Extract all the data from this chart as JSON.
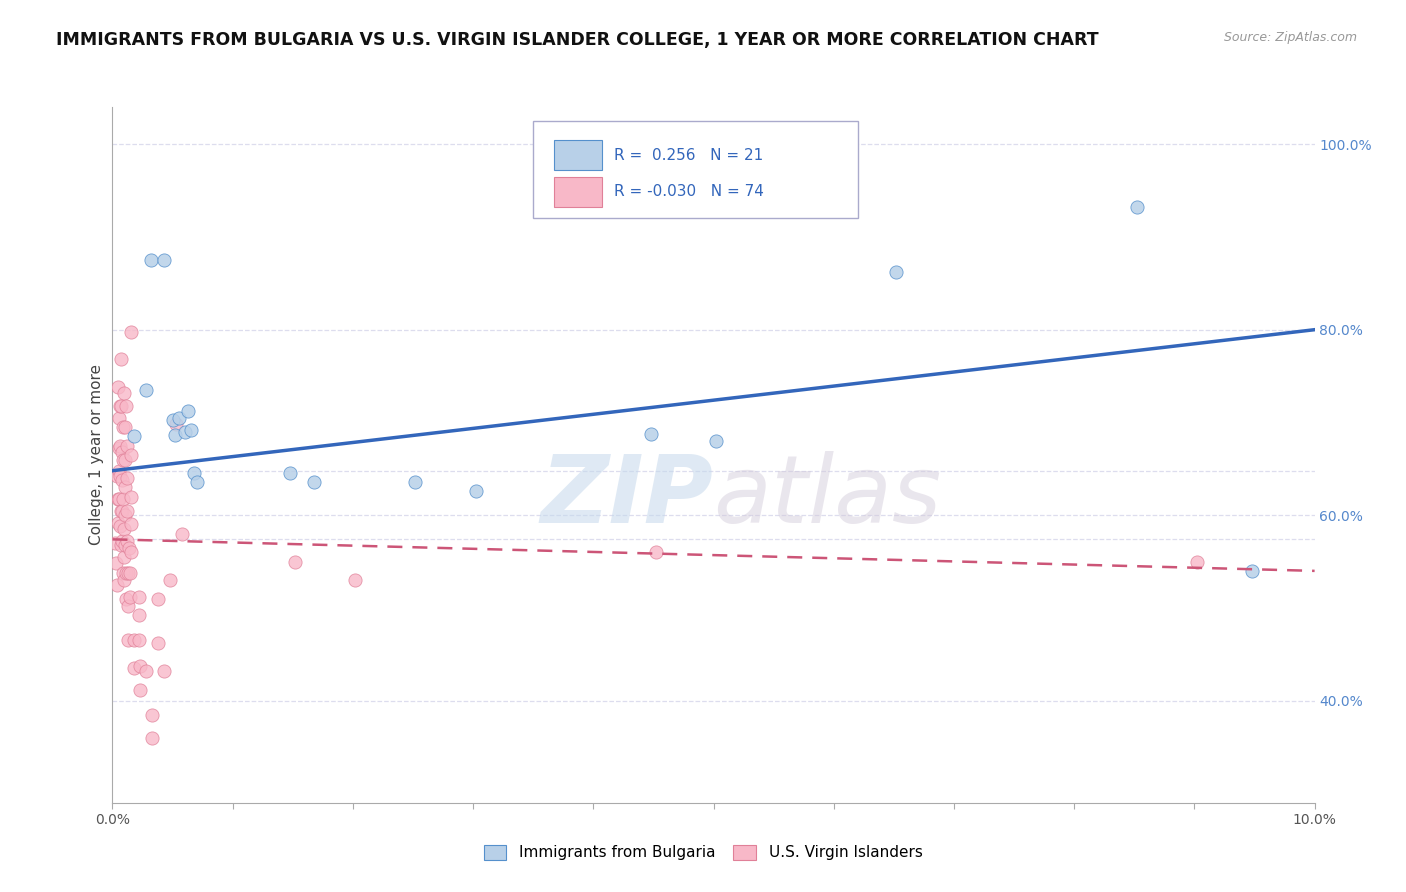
{
  "title": "IMMIGRANTS FROM BULGARIA VS U.S. VIRGIN ISLANDER COLLEGE, 1 YEAR OR MORE CORRELATION CHART",
  "source": "Source: ZipAtlas.com",
  "ylabel": "College, 1 year or more",
  "legend_blue_r": "R =  0.256",
  "legend_blue_n": "N = 21",
  "legend_pink_r": "R = -0.030",
  "legend_pink_n": "N = 74",
  "legend_blue_label": "Immigrants from Bulgaria",
  "legend_pink_label": "U.S. Virgin Islanders",
  "blue_fill": "#b8d0e8",
  "blue_edge": "#5590cc",
  "pink_fill": "#f8b8c8",
  "pink_edge": "#e08098",
  "blue_line": "#3366bb",
  "pink_line": "#cc5577",
  "bg_color": "#ffffff",
  "grid_color": "#ddddee",
  "right_tick_color": "#5588cc",
  "blue_dots": [
    [
      0.18,
      0.685
    ],
    [
      0.28,
      0.735
    ],
    [
      0.32,
      0.875
    ],
    [
      0.43,
      0.875
    ],
    [
      0.5,
      0.703
    ],
    [
      0.52,
      0.686
    ],
    [
      0.55,
      0.705
    ],
    [
      0.6,
      0.69
    ],
    [
      0.63,
      0.712
    ],
    [
      0.65,
      0.692
    ],
    [
      0.68,
      0.646
    ],
    [
      0.7,
      0.636
    ],
    [
      1.48,
      0.646
    ],
    [
      1.68,
      0.636
    ],
    [
      2.52,
      0.636
    ],
    [
      3.02,
      0.626
    ],
    [
      4.48,
      0.688
    ],
    [
      5.02,
      0.68
    ],
    [
      6.52,
      0.862
    ],
    [
      8.52,
      0.932
    ],
    [
      9.48,
      0.54
    ]
  ],
  "pink_dots": [
    [
      0.02,
      0.57
    ],
    [
      0.03,
      0.548
    ],
    [
      0.035,
      0.525
    ],
    [
      0.04,
      0.642
    ],
    [
      0.042,
      0.618
    ],
    [
      0.044,
      0.592
    ],
    [
      0.05,
      0.738
    ],
    [
      0.052,
      0.705
    ],
    [
      0.054,
      0.672
    ],
    [
      0.056,
      0.648
    ],
    [
      0.058,
      0.618
    ],
    [
      0.06,
      0.588
    ],
    [
      0.062,
      0.718
    ],
    [
      0.064,
      0.675
    ],
    [
      0.066,
      0.642
    ],
    [
      0.068,
      0.605
    ],
    [
      0.07,
      0.568
    ],
    [
      0.072,
      0.768
    ],
    [
      0.074,
      0.718
    ],
    [
      0.076,
      0.668
    ],
    [
      0.078,
      0.638
    ],
    [
      0.08,
      0.605
    ],
    [
      0.082,
      0.572
    ],
    [
      0.084,
      0.538
    ],
    [
      0.086,
      0.695
    ],
    [
      0.088,
      0.66
    ],
    [
      0.09,
      0.618
    ],
    [
      0.092,
      0.585
    ],
    [
      0.094,
      0.555
    ],
    [
      0.096,
      0.53
    ],
    [
      0.098,
      0.732
    ],
    [
      0.1,
      0.695
    ],
    [
      0.102,
      0.66
    ],
    [
      0.104,
      0.63
    ],
    [
      0.106,
      0.6
    ],
    [
      0.108,
      0.568
    ],
    [
      0.11,
      0.538
    ],
    [
      0.112,
      0.51
    ],
    [
      0.115,
      0.718
    ],
    [
      0.117,
      0.675
    ],
    [
      0.119,
      0.64
    ],
    [
      0.121,
      0.605
    ],
    [
      0.123,
      0.572
    ],
    [
      0.125,
      0.538
    ],
    [
      0.127,
      0.502
    ],
    [
      0.129,
      0.465
    ],
    [
      0.14,
      0.565
    ],
    [
      0.142,
      0.538
    ],
    [
      0.144,
      0.512
    ],
    [
      0.15,
      0.798
    ],
    [
      0.152,
      0.665
    ],
    [
      0.154,
      0.62
    ],
    [
      0.156,
      0.59
    ],
    [
      0.158,
      0.56
    ],
    [
      0.18,
      0.465
    ],
    [
      0.182,
      0.435
    ],
    [
      0.22,
      0.512
    ],
    [
      0.222,
      0.492
    ],
    [
      0.224,
      0.465
    ],
    [
      0.226,
      0.438
    ],
    [
      0.228,
      0.412
    ],
    [
      0.28,
      0.432
    ],
    [
      0.33,
      0.385
    ],
    [
      0.332,
      0.36
    ],
    [
      0.38,
      0.51
    ],
    [
      0.382,
      0.462
    ],
    [
      0.43,
      0.432
    ],
    [
      0.48,
      0.53
    ],
    [
      0.53,
      0.698
    ],
    [
      0.58,
      0.58
    ],
    [
      1.52,
      0.55
    ],
    [
      2.02,
      0.53
    ],
    [
      4.52,
      0.56
    ],
    [
      9.02,
      0.55
    ]
  ],
  "xlim": [
    0.0,
    10.0
  ],
  "ylim": [
    0.29,
    1.04
  ],
  "xticks": [
    0.0,
    1.0,
    2.0,
    3.0,
    4.0,
    5.0,
    6.0,
    7.0,
    8.0,
    9.0,
    10.0
  ],
  "xtick_labels_show": [
    "0.0%",
    "",
    "",
    "",
    "",
    "",
    "",
    "",
    "",
    "",
    "10.0%"
  ],
  "yticks_right": [
    0.4,
    0.6,
    0.8,
    1.0
  ],
  "ytick_right_labels": [
    "40.0%",
    "60.0%",
    "80.0%",
    "100.0%"
  ],
  "blue_trend": [
    0.0,
    0.648,
    10.0,
    0.8
  ],
  "pink_trend": [
    0.0,
    0.574,
    10.0,
    0.54
  ],
  "hgrid_dashed": [
    0.648,
    0.574,
    0.8,
    1.0,
    0.4,
    0.6
  ]
}
